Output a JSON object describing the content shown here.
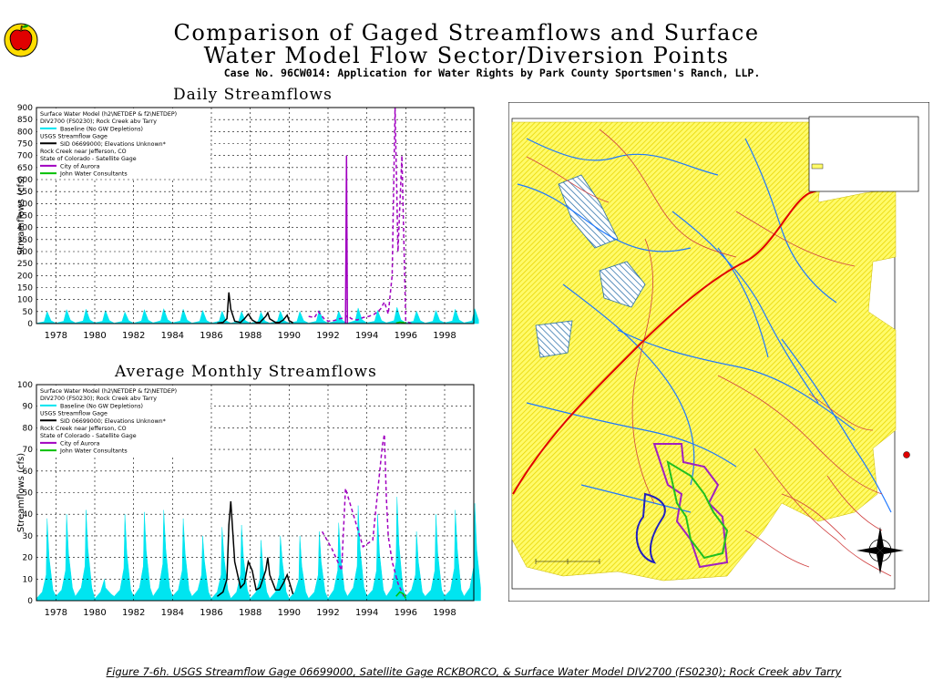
{
  "header": {
    "title_line1": "Comparison of Gaged Streamflows and Surface",
    "title_line2": "Water Model Flow Sector/Diversion Points",
    "subtitle": "Case No. 96CW014: Application for Water Rights by Park County Sportsmen's Ranch, LLP."
  },
  "caption": "Figure 7-6h. USGS Streamflow Gage 06699000, Satellite Gage RCKBORCO, & Surface Water Model DIV2700 (FS0230); Rock Creek abv Tarry",
  "legend": {
    "l1": "Surface Water Model (h2\\NETDEP & f2\\NETDEP)",
    "l2": "DIV2700 (FS0230); Rock Creek abv Tarry",
    "l3": "Baseline (No GW Depletions)",
    "l4": "USGS Streamflow Gage",
    "l5": "SID 06699000; Elevations Unknown*",
    "l6": "Rock Creek near Jefferson, CO",
    "l7": "State of Colorado - Satellite Gage",
    "l8": "City of Aurora",
    "l9": "John Water Consultants"
  },
  "chart_data": [
    {
      "type": "line",
      "title": "Daily Streamflows",
      "ylabel": "Streamflows (cfs)",
      "xlim": [
        1977,
        1999.5
      ],
      "ylim": [
        0,
        900
      ],
      "xticks": [
        "1978",
        "1980",
        "1982",
        "1984",
        "1986",
        "1988",
        "1990",
        "1992",
        "1994",
        "1996",
        "1998"
      ],
      "yticks": [
        "0",
        "50",
        "100",
        "150",
        "200",
        "250",
        "300",
        "350",
        "400",
        "450",
        "500",
        "550",
        "600",
        "650",
        "700",
        "750",
        "800",
        "850",
        "900"
      ],
      "grid": true,
      "legend_position": "top-left",
      "series": [
        {
          "name": "Baseline (No GW Depletions)",
          "style": "fill",
          "color": "#00e5f0",
          "x": [
            1977.0,
            1977.4,
            1977.55,
            1977.75,
            1978.0,
            1978.4,
            1978.55,
            1978.75,
            1979.0,
            1979.4,
            1979.55,
            1979.75,
            1980.0,
            1980.4,
            1980.55,
            1980.75,
            1981.0,
            1981.4,
            1981.55,
            1981.75,
            1982.0,
            1982.4,
            1982.55,
            1982.75,
            1983.0,
            1983.4,
            1983.55,
            1983.75,
            1984.0,
            1984.4,
            1984.55,
            1984.75,
            1985.0,
            1985.4,
            1985.55,
            1985.75,
            1986.0,
            1986.4,
            1986.55,
            1986.75,
            1987.0,
            1987.4,
            1987.55,
            1987.75,
            1988.0,
            1988.4,
            1988.55,
            1988.75,
            1989.0,
            1989.4,
            1989.55,
            1989.75,
            1990.0,
            1990.4,
            1990.55,
            1990.75,
            1991.0,
            1991.4,
            1991.55,
            1991.75,
            1992.0,
            1992.4,
            1992.55,
            1992.75,
            1993.0,
            1993.4,
            1993.55,
            1993.75,
            1994.0,
            1994.4,
            1994.55,
            1994.75,
            1995.0,
            1995.4,
            1995.55,
            1995.75,
            1996.0,
            1996.4,
            1996.55,
            1996.75,
            1997.0,
            1997.4,
            1997.55,
            1997.75,
            1998.0,
            1998.4,
            1998.55,
            1998.75,
            1999.0,
            1999.4,
            1999.55,
            1999.75
          ],
          "values": [
            1,
            8,
            50,
            12,
            2,
            10,
            58,
            14,
            3,
            11,
            60,
            15,
            3,
            10,
            55,
            13,
            2,
            9,
            48,
            12,
            2,
            11,
            58,
            14,
            3,
            12,
            62,
            16,
            3,
            11,
            60,
            15,
            2,
            10,
            55,
            13,
            2,
            10,
            52,
            12,
            2,
            9,
            50,
            12,
            2,
            9,
            48,
            11,
            2,
            10,
            52,
            12,
            2,
            9,
            50,
            12,
            2,
            10,
            55,
            13,
            2,
            10,
            52,
            12,
            2,
            12,
            65,
            16,
            3,
            10,
            55,
            13,
            3,
            12,
            68,
            16,
            3,
            10,
            52,
            12,
            2,
            10,
            55,
            13,
            3,
            11,
            60,
            15,
            3,
            11,
            62,
            15
          ]
        },
        {
          "name": "USGS 06699000 Rock Creek near Jefferson",
          "style": "line",
          "color": "#000000",
          "x": [
            1986.3,
            1986.6,
            1986.8,
            1986.9,
            1987.0,
            1987.2,
            1987.5,
            1987.7,
            1987.9,
            1988.1,
            1988.3,
            1988.5,
            1988.8,
            1988.9,
            1989.0,
            1989.3,
            1989.5,
            1989.7,
            1989.9,
            1990.0,
            1990.2
          ],
          "values": [
            2,
            5,
            20,
            130,
            60,
            10,
            5,
            20,
            40,
            15,
            5,
            5,
            30,
            45,
            20,
            5,
            5,
            15,
            35,
            12,
            3
          ]
        },
        {
          "name": "City of Aurora",
          "style": "dashed",
          "color": "#a000c0",
          "x": [
            1991.0,
            1991.3,
            1991.5,
            1991.8,
            1992.0,
            1992.3,
            1992.6,
            1992.9,
            1993.0,
            1993.2,
            1993.5,
            1993.8,
            1994.1,
            1994.4,
            1994.7,
            1994.9,
            1995.1,
            1995.3,
            1995.45,
            1995.6,
            1995.8,
            1996.0,
            1996.3
          ],
          "values": [
            30,
            25,
            50,
            20,
            10,
            12,
            20,
            25,
            35,
            20,
            15,
            25,
            30,
            40,
            60,
            90,
            40,
            200,
            900,
            300,
            700,
            10,
            0
          ]
        },
        {
          "name": "City of Aurora (spike)",
          "style": "line",
          "color": "#a000c0",
          "x": [
            1992.9,
            1992.95,
            1993.0
          ],
          "values": [
            0,
            700,
            0
          ]
        },
        {
          "name": "John Water Consultants",
          "style": "line",
          "color": "#00c000",
          "x": [
            1995.5,
            1995.7,
            1995.9,
            1996.0
          ],
          "values": [
            2,
            6,
            4,
            1
          ]
        }
      ]
    },
    {
      "type": "line",
      "title": "Average Monthly Streamflows",
      "ylabel": "Streamflows (cfs)",
      "xlim": [
        1977,
        1999.5
      ],
      "ylim": [
        0,
        100
      ],
      "xticks": [
        "1978",
        "1980",
        "1982",
        "1984",
        "1986",
        "1988",
        "1990",
        "1992",
        "1994",
        "1996",
        "1998"
      ],
      "yticks": [
        "0",
        "10",
        "20",
        "30",
        "40",
        "50",
        "60",
        "70",
        "80",
        "90",
        "100"
      ],
      "grid": true,
      "legend_position": "top-left",
      "series": [
        {
          "name": "Baseline (No GW Depletions)",
          "style": "fill",
          "color": "#00e5f0",
          "x": [
            1977.0,
            1977.3,
            1977.5,
            1977.55,
            1977.65,
            1977.85,
            1978.0,
            1978.3,
            1978.5,
            1978.55,
            1978.65,
            1978.85,
            1979.0,
            1979.3,
            1979.5,
            1979.55,
            1979.65,
            1979.85,
            1980.0,
            1980.3,
            1980.5,
            1980.55,
            1980.65,
            1980.85,
            1981.0,
            1981.3,
            1981.5,
            1981.55,
            1981.65,
            1981.85,
            1982.0,
            1982.3,
            1982.5,
            1982.55,
            1982.65,
            1982.85,
            1983.0,
            1983.3,
            1983.5,
            1983.55,
            1983.65,
            1983.85,
            1984.0,
            1984.3,
            1984.5,
            1984.55,
            1984.65,
            1984.85,
            1985.0,
            1985.3,
            1985.5,
            1985.55,
            1985.65,
            1985.85,
            1986.0,
            1986.3,
            1986.5,
            1986.55,
            1986.65,
            1986.85,
            1987.0,
            1987.3,
            1987.5,
            1987.55,
            1987.65,
            1987.85,
            1988.0,
            1988.3,
            1988.5,
            1988.55,
            1988.65,
            1988.85,
            1989.0,
            1989.3,
            1989.5,
            1989.55,
            1989.65,
            1989.85,
            1990.0,
            1990.3,
            1990.5,
            1990.55,
            1990.65,
            1990.85,
            1991.0,
            1991.3,
            1991.5,
            1991.55,
            1991.65,
            1991.85,
            1992.0,
            1992.3,
            1992.5,
            1992.55,
            1992.65,
            1992.85,
            1993.0,
            1993.3,
            1993.5,
            1993.55,
            1993.65,
            1993.85,
            1994.0,
            1994.3,
            1994.5,
            1994.55,
            1994.65,
            1994.85,
            1995.0,
            1995.3,
            1995.5,
            1995.55,
            1995.65,
            1995.85,
            1996.0,
            1996.3,
            1996.5,
            1996.55,
            1996.65,
            1996.85,
            1997.0,
            1997.3,
            1997.5,
            1997.55,
            1997.65,
            1997.85,
            1998.0,
            1998.3,
            1998.5,
            1998.55,
            1998.65,
            1998.85,
            1999.0,
            1999.3,
            1999.5,
            1999.55,
            1999.65,
            1999.85
          ],
          "values": [
            1,
            4,
            12,
            38,
            20,
            5,
            2,
            5,
            14,
            40,
            22,
            6,
            2,
            6,
            16,
            42,
            24,
            6,
            1,
            4,
            10,
            6,
            5,
            3,
            2,
            5,
            15,
            40,
            22,
            5,
            2,
            6,
            16,
            41,
            23,
            6,
            2,
            6,
            17,
            42,
            24,
            6,
            2,
            5,
            14,
            38,
            22,
            5,
            2,
            5,
            12,
            30,
            18,
            4,
            1,
            4,
            12,
            34,
            20,
            5,
            1,
            4,
            12,
            35,
            20,
            5,
            1,
            4,
            10,
            28,
            16,
            4,
            1,
            4,
            12,
            30,
            18,
            4,
            1,
            4,
            10,
            30,
            16,
            4,
            1,
            4,
            12,
            32,
            18,
            4,
            1,
            5,
            14,
            36,
            20,
            5,
            2,
            6,
            16,
            44,
            24,
            6,
            2,
            5,
            14,
            40,
            22,
            5,
            2,
            6,
            18,
            48,
            26,
            6,
            2,
            5,
            12,
            32,
            18,
            4,
            2,
            5,
            14,
            40,
            22,
            5,
            2,
            5,
            15,
            42,
            24,
            5,
            2,
            6,
            16,
            45,
            24,
            6
          ]
        },
        {
          "name": "USGS 06699000 Rock Creek near Jefferson",
          "style": "line",
          "color": "#000000",
          "x": [
            1986.3,
            1986.6,
            1986.8,
            1986.9,
            1987.0,
            1987.2,
            1987.5,
            1987.7,
            1987.9,
            1988.1,
            1988.3,
            1988.5,
            1988.8,
            1988.9,
            1989.0,
            1989.3,
            1989.5,
            1989.7,
            1989.9,
            1990.0,
            1990.2
          ],
          "values": [
            2,
            4,
            10,
            35,
            46,
            18,
            6,
            8,
            18,
            14,
            5,
            6,
            14,
            20,
            12,
            5,
            5,
            8,
            12,
            9,
            3
          ]
        },
        {
          "name": "City of Aurora",
          "style": "dashed",
          "color": "#a000c0",
          "x": [
            1991.7,
            1992.2,
            1992.7,
            1992.9,
            1993.3,
            1993.8,
            1994.3,
            1994.8,
            1994.9,
            1995.0,
            1995.1,
            1995.3,
            1995.6,
            1995.9
          ],
          "values": [
            32,
            24,
            14,
            52,
            40,
            25,
            28,
            72,
            77,
            48,
            30,
            18,
            8,
            2
          ]
        },
        {
          "name": "John Water Consultants",
          "style": "line",
          "color": "#00c000",
          "x": [
            1995.5,
            1995.7,
            1995.9,
            1996.0
          ],
          "values": [
            2,
            4,
            3,
            1
          ]
        }
      ]
    }
  ]
}
